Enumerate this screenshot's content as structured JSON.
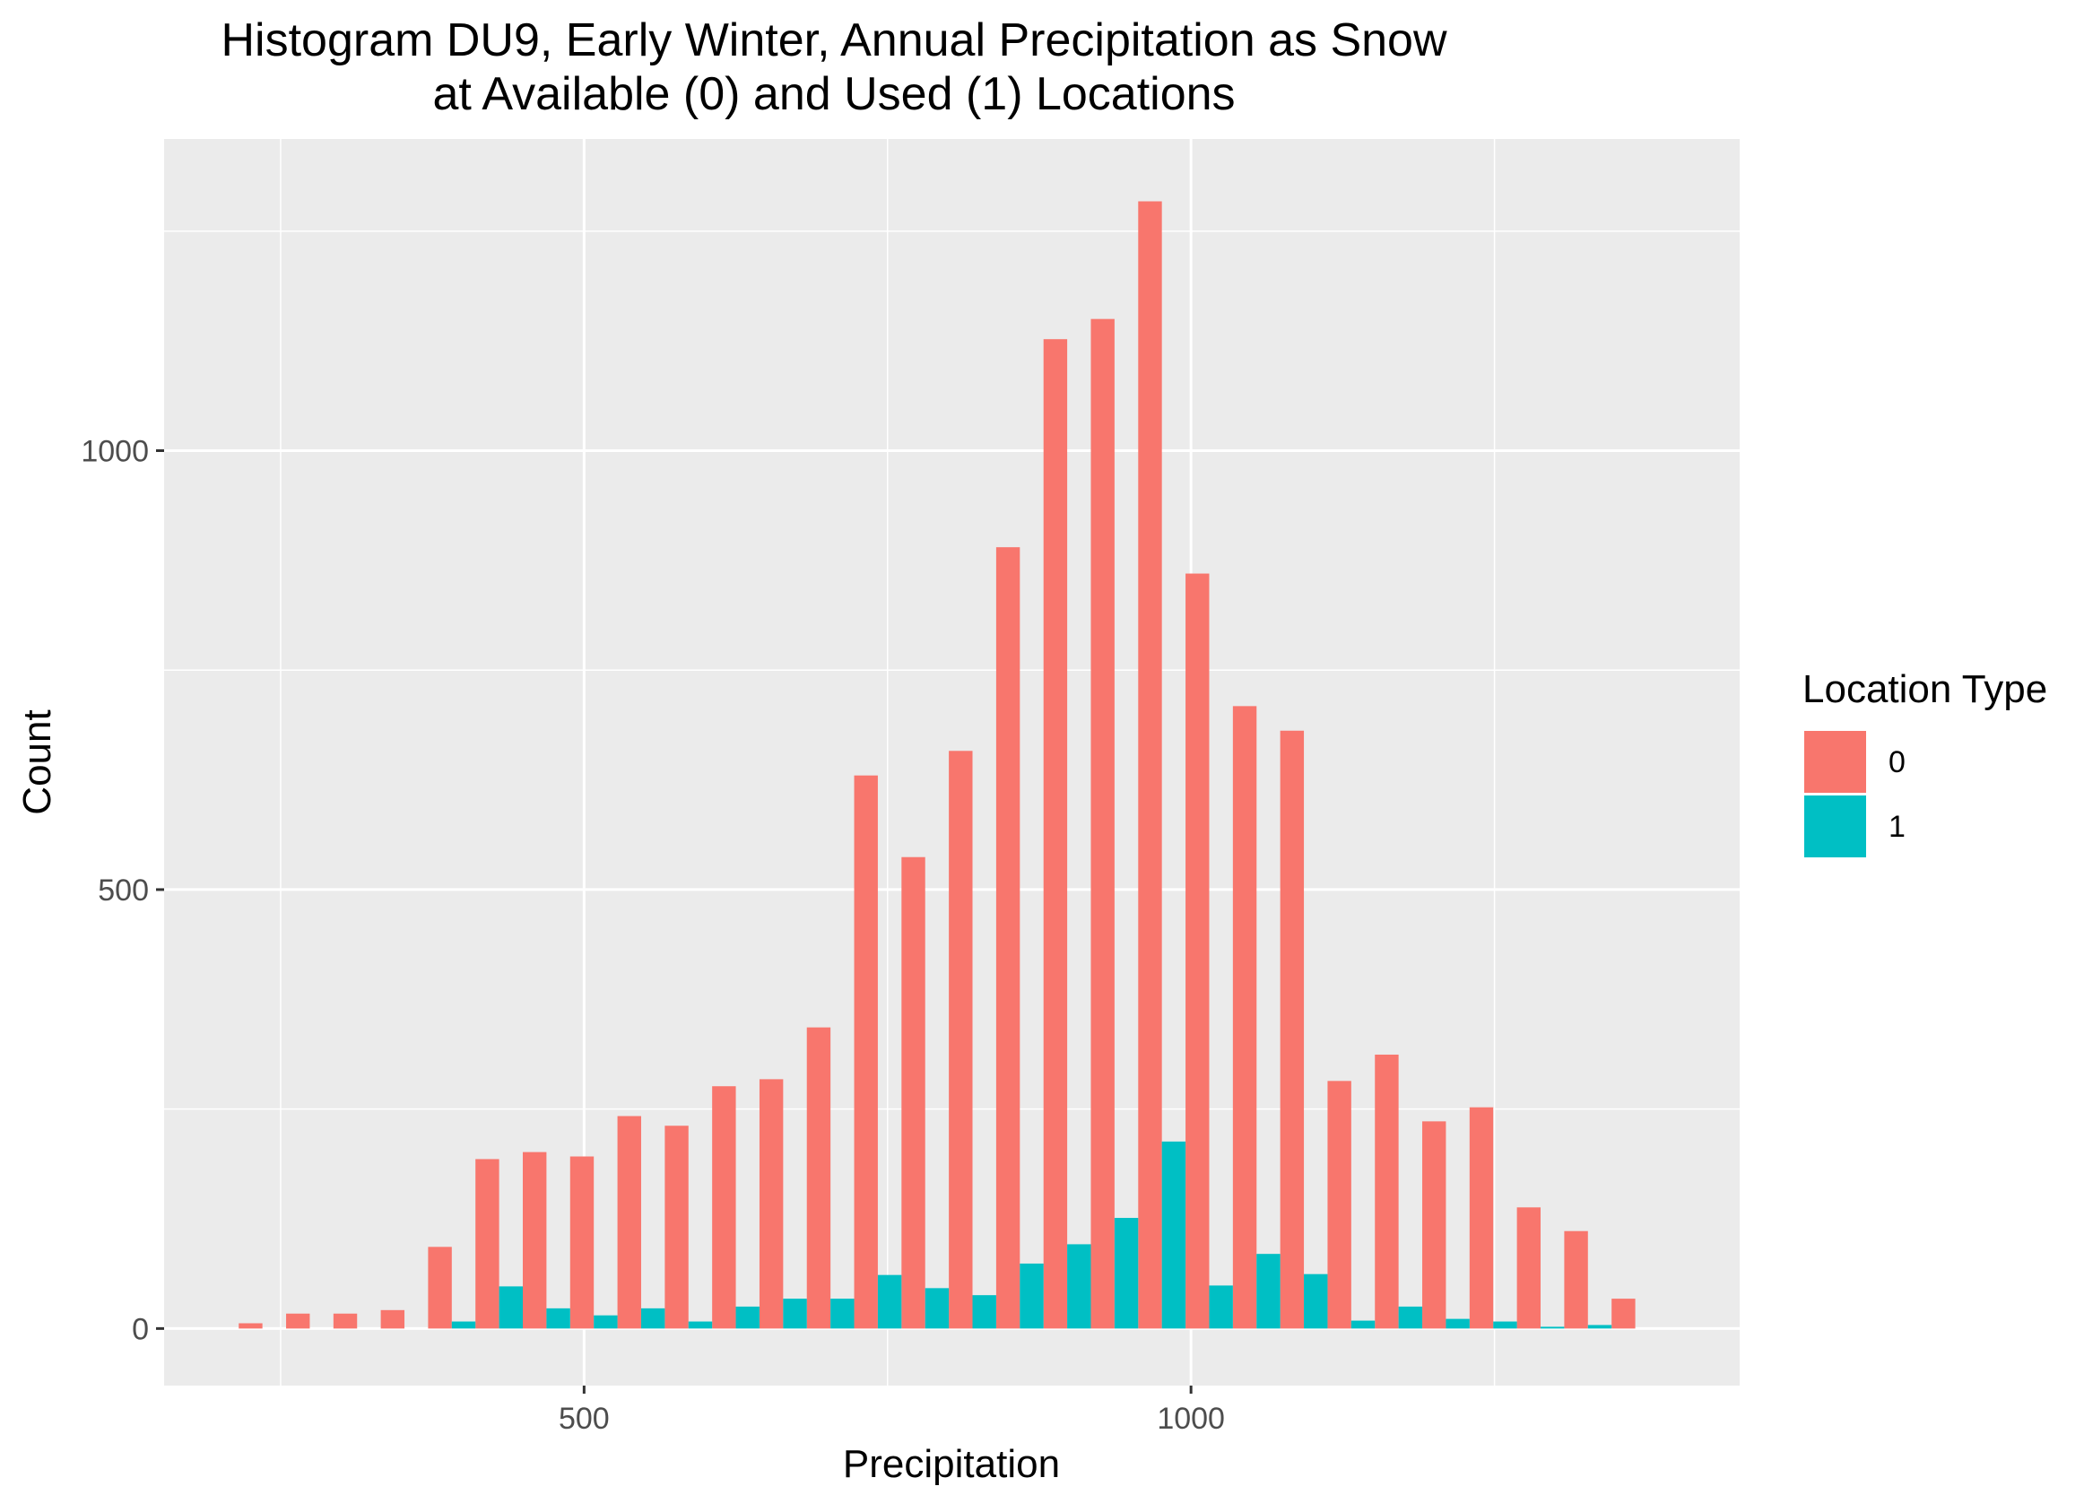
{
  "chart_data": {
    "type": "bar",
    "title_lines": [
      "Histogram DU9, Early Winter, Annual Precipitation as Snow",
      "at Available (0) and Used (1) Locations"
    ],
    "xlabel": "Precipitation",
    "ylabel": "Count",
    "xlim": [
      154,
      1452
    ],
    "ylim": [
      -65,
      1355
    ],
    "x_ticks": [
      500,
      1000
    ],
    "x_tick_labels": [
      "500",
      "1000"
    ],
    "x_minor_ticks": [
      250,
      750,
      1250
    ],
    "y_ticks": [
      0,
      500,
      1000
    ],
    "y_tick_labels": [
      "0",
      "500",
      "1000"
    ],
    "y_minor_ticks": [
      250,
      750,
      1250
    ],
    "grid": true,
    "legend": {
      "title": "Location Type",
      "position": "right"
    },
    "bin_centers": [
      235,
      274,
      313,
      352,
      391,
      430,
      469,
      508,
      547,
      586,
      625,
      664,
      703,
      742,
      781,
      820,
      859,
      898,
      937,
      976,
      1015,
      1054,
      1093,
      1132,
      1171,
      1210,
      1249,
      1288,
      1327,
      1366
    ],
    "series": [
      {
        "name": "0",
        "color": "#F8766D",
        "values": [
          6,
          17,
          17,
          21,
          93,
          193,
          201,
          196,
          242,
          231,
          276,
          284,
          343,
          630,
          537,
          658,
          890,
          1127,
          1150,
          1284,
          860,
          709,
          681,
          282,
          312,
          236,
          252,
          138,
          111,
          34
        ]
      },
      {
        "name": "1",
        "color": "#00BFC4",
        "values": [
          0,
          0,
          0,
          0,
          8,
          48,
          23,
          15,
          23,
          8,
          25,
          34,
          34,
          61,
          46,
          38,
          74,
          96,
          126,
          213,
          49,
          85,
          62,
          9,
          25,
          11,
          8,
          2,
          4,
          0
        ]
      }
    ]
  }
}
